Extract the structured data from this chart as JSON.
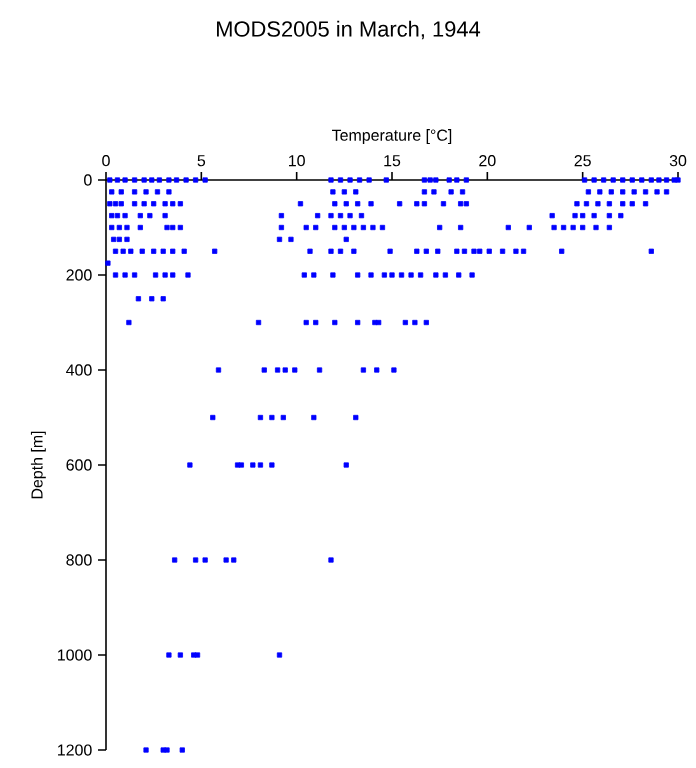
{
  "chart_data": {
    "type": "scatter",
    "title": "MODS2005 in March, 1944",
    "xlabel": "Temperature [°C]",
    "ylabel": "Depth [m]",
    "xlim": [
      0,
      30
    ],
    "xticks": [
      0,
      5,
      10,
      15,
      20,
      25,
      30
    ],
    "ylim": [
      1200,
      0
    ],
    "yticks": [
      0,
      200,
      400,
      600,
      800,
      1000,
      1200
    ],
    "marker": "square",
    "grid": false,
    "series": [
      {
        "color": "#0000ff",
        "x": [
          0.2,
          0.6,
          1.0,
          1.5,
          2.0,
          2.4,
          2.8,
          3.3,
          3.7,
          4.2,
          4.7,
          5.2,
          11.8,
          12.3,
          12.8,
          13.3,
          13.8,
          14.7,
          16.7,
          17.0,
          17.3,
          18.0,
          18.4,
          18.9,
          25.1,
          25.6,
          26.1,
          26.6,
          27.1,
          27.6,
          28.1,
          28.6,
          29.0,
          29.4,
          29.8,
          30.0
        ],
        "values": [
          0,
          0,
          0,
          0,
          0,
          0,
          0,
          0,
          0,
          0,
          0,
          0,
          0,
          0,
          0,
          0,
          0,
          0,
          0,
          0,
          0,
          0,
          0,
          0,
          0,
          0,
          0,
          0,
          0,
          0,
          0,
          0,
          0,
          0,
          0,
          0
        ]
      },
      {
        "color": "#0000ff",
        "x": [
          0.3,
          0.8,
          1.5,
          2.1,
          2.7,
          3.3,
          11.9,
          12.5,
          13.1,
          16.7,
          17.2,
          18.1,
          18.7,
          25.3,
          25.9,
          26.5,
          27.1,
          27.7,
          28.3,
          28.9,
          29.4
        ],
        "values": [
          25,
          25,
          25,
          25,
          25,
          25,
          25,
          25,
          25,
          25,
          25,
          25,
          25,
          25,
          25,
          25,
          25,
          25,
          25,
          25,
          25
        ]
      },
      {
        "color": "#0000ff",
        "x": [
          0.2,
          0.5,
          0.8,
          1.5,
          2.0,
          2.5,
          3.1,
          3.5,
          3.9,
          10.2,
          12.0,
          12.6,
          13.2,
          13.9,
          15.4,
          16.3,
          16.7,
          17.7,
          18.6,
          18.9,
          24.7,
          25.2,
          25.8,
          26.4,
          27.1,
          27.6,
          28.3
        ],
        "values": [
          50,
          50,
          50,
          50,
          50,
          50,
          50,
          50,
          50,
          50,
          50,
          50,
          50,
          50,
          50,
          50,
          50,
          50,
          50,
          50,
          50,
          50,
          50,
          50,
          50,
          50,
          50
        ]
      },
      {
        "color": "#0000ff",
        "x": [
          0.3,
          0.6,
          1.0,
          1.8,
          2.3,
          3.1,
          9.2,
          11.1,
          11.8,
          12.3,
          12.8,
          13.4,
          23.4,
          24.6,
          25.0,
          25.6,
          26.4,
          27.0
        ],
        "values": [
          75,
          75,
          75,
          75,
          75,
          75,
          75,
          75,
          75,
          75,
          75,
          75,
          75,
          75,
          75,
          75,
          75,
          75
        ]
      },
      {
        "color": "#0000ff",
        "x": [
          0.3,
          0.7,
          1.1,
          1.8,
          3.2,
          3.5,
          3.9,
          9.2,
          10.5,
          11.0,
          12.0,
          12.5,
          13.0,
          13.5,
          14.0,
          14.5,
          17.5,
          18.6,
          21.1,
          22.2,
          23.5,
          24.0,
          24.5,
          25.0,
          25.7,
          26.4
        ],
        "values": [
          100,
          100,
          100,
          100,
          100,
          100,
          100,
          100,
          100,
          100,
          100,
          100,
          100,
          100,
          100,
          100,
          100,
          100,
          100,
          100,
          100,
          100,
          100,
          100,
          100,
          100
        ]
      },
      {
        "color": "#0000ff",
        "x": [
          0.4,
          0.7,
          1.1,
          9.1,
          9.7,
          12.6
        ],
        "values": [
          125,
          125,
          125,
          125,
          125,
          125
        ]
      },
      {
        "color": "#0000ff",
        "x": [
          0.5,
          0.9,
          1.3,
          1.9,
          2.5,
          3.0,
          3.5,
          4.1,
          5.7,
          10.7,
          11.8,
          12.3,
          13.0,
          14.9,
          16.3,
          16.8,
          17.4,
          18.4,
          18.8,
          19.3,
          19.6,
          20.1,
          20.8,
          21.5,
          21.9,
          23.9,
          28.6
        ],
        "values": [
          150,
          150,
          150,
          150,
          150,
          150,
          150,
          150,
          150,
          150,
          150,
          150,
          150,
          150,
          150,
          150,
          150,
          150,
          150,
          150,
          150,
          150,
          150,
          150,
          150,
          150,
          150
        ]
      },
      {
        "color": "#0000ff",
        "x": [
          0.1
        ],
        "values": [
          175
        ]
      },
      {
        "color": "#0000ff",
        "x": [
          0.5,
          1.0,
          1.5,
          2.6,
          3.1,
          3.5,
          4.3,
          10.4,
          10.9,
          11.9,
          13.2,
          13.9,
          14.6,
          15.0,
          15.5,
          16.0,
          16.5,
          17.3,
          17.8,
          18.5,
          19.2
        ],
        "values": [
          200,
          200,
          200,
          200,
          200,
          200,
          200,
          200,
          200,
          200,
          200,
          200,
          200,
          200,
          200,
          200,
          200,
          200,
          200,
          200,
          200
        ]
      },
      {
        "color": "#0000ff",
        "x": [
          1.7,
          2.4,
          3.0
        ],
        "values": [
          250,
          250,
          250
        ]
      },
      {
        "color": "#0000ff",
        "x": [
          1.2,
          8.0,
          10.5,
          11.0,
          12.0,
          13.2,
          14.1,
          14.3,
          15.7,
          16.2,
          16.8
        ],
        "values": [
          300,
          300,
          300,
          300,
          300,
          300,
          300,
          300,
          300,
          300,
          300
        ]
      },
      {
        "color": "#0000ff",
        "x": [
          5.9,
          8.3,
          9.0,
          9.4,
          9.9,
          11.2,
          13.5,
          14.2,
          15.1
        ],
        "values": [
          400,
          400,
          400,
          400,
          400,
          400,
          400,
          400,
          400
        ]
      },
      {
        "color": "#0000ff",
        "x": [
          5.6,
          8.1,
          8.7,
          9.3,
          10.9,
          13.1
        ],
        "values": [
          500,
          500,
          500,
          500,
          500,
          500
        ]
      },
      {
        "color": "#0000ff",
        "x": [
          4.4,
          6.9,
          7.1,
          7.7,
          8.1,
          8.7,
          12.6
        ],
        "values": [
          600,
          600,
          600,
          600,
          600,
          600,
          600
        ]
      },
      {
        "color": "#0000ff",
        "x": [
          3.6,
          4.7,
          5.2,
          6.3,
          6.7,
          11.8
        ],
        "values": [
          800,
          800,
          800,
          800,
          800,
          800
        ]
      },
      {
        "color": "#0000ff",
        "x": [
          3.3,
          3.9,
          4.6,
          4.8,
          9.1
        ],
        "values": [
          1000,
          1000,
          1000,
          1000,
          1000
        ]
      },
      {
        "color": "#0000ff",
        "x": [
          2.1,
          3.0,
          3.2,
          4.0
        ],
        "values": [
          1200,
          1200,
          1200,
          1200
        ]
      }
    ]
  }
}
